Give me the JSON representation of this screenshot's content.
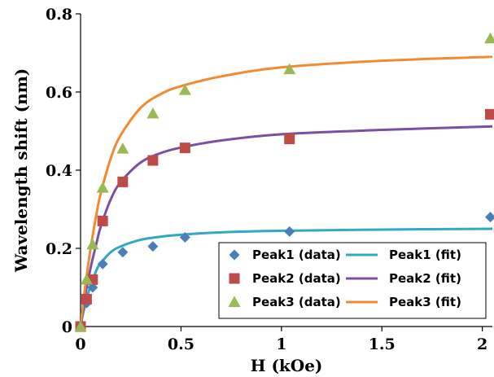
{
  "chart_data": {
    "type": "scatter",
    "xlabel": "H (kOe)",
    "ylabel": "Wavelength shift (nm)",
    "xlim": [
      0,
      2.05
    ],
    "ylim": [
      0,
      0.8
    ],
    "x_ticks": [
      0,
      0.5,
      1,
      1.5,
      2
    ],
    "x_tick_labels": [
      "0",
      "0.5",
      "1",
      "1.5",
      "2"
    ],
    "y_ticks": [
      0,
      0.2,
      0.4,
      0.6,
      0.8
    ],
    "y_tick_labels": [
      "0",
      "0.2",
      "0.4",
      "0.6",
      "0.8"
    ],
    "grid": false,
    "legend_position": "bottom-right",
    "series": [
      {
        "name": "Peak1 (data)",
        "kind": "markers",
        "marker": "diamond",
        "color": "#4a7ebb",
        "x": [
          0,
          0.03,
          0.06,
          0.11,
          0.21,
          0.36,
          0.52,
          1.04,
          2.04
        ],
        "y": [
          0,
          0.06,
          0.1,
          0.16,
          0.19,
          0.205,
          0.228,
          0.243,
          0.28
        ]
      },
      {
        "name": "Peak2 (data)",
        "kind": "markers",
        "marker": "square",
        "color": "#be4b48",
        "x": [
          0,
          0.03,
          0.06,
          0.11,
          0.21,
          0.36,
          0.52,
          1.04,
          2.04
        ],
        "y": [
          0,
          0.07,
          0.12,
          0.27,
          0.37,
          0.425,
          0.457,
          0.48,
          0.543
        ]
      },
      {
        "name": "Peak3 (data)",
        "kind": "markers",
        "marker": "triangle",
        "color": "#98b954",
        "x": [
          0,
          0.03,
          0.06,
          0.11,
          0.21,
          0.36,
          0.52,
          1.04,
          2.04
        ],
        "y": [
          0,
          0.12,
          0.21,
          0.355,
          0.455,
          0.545,
          0.605,
          0.658,
          0.737
        ]
      },
      {
        "name": "Peak1 (fit)",
        "kind": "line",
        "color": "#31a8c4",
        "x": [
          0,
          0.02,
          0.05,
          0.08,
          0.1,
          0.15,
          0.2,
          0.3,
          0.4,
          0.5,
          0.7,
          1.0,
          1.5,
          2.05
        ],
        "y": [
          0,
          0.05,
          0.105,
          0.145,
          0.162,
          0.19,
          0.205,
          0.222,
          0.23,
          0.235,
          0.241,
          0.245,
          0.248,
          0.25
        ]
      },
      {
        "name": "Peak2 (fit)",
        "kind": "line",
        "color": "#7a50a3",
        "x": [
          0,
          0.02,
          0.05,
          0.08,
          0.1,
          0.15,
          0.2,
          0.3,
          0.4,
          0.5,
          0.7,
          1.0,
          1.5,
          2.05
        ],
        "y": [
          0,
          0.07,
          0.15,
          0.215,
          0.255,
          0.325,
          0.37,
          0.42,
          0.444,
          0.458,
          0.476,
          0.492,
          0.503,
          0.512
        ]
      },
      {
        "name": "Peak3 (fit)",
        "kind": "line",
        "color": "#f08b34",
        "x": [
          0,
          0.02,
          0.05,
          0.08,
          0.1,
          0.15,
          0.2,
          0.3,
          0.4,
          0.5,
          0.7,
          1.0,
          1.5,
          2.05
        ],
        "y": [
          0,
          0.09,
          0.2,
          0.29,
          0.34,
          0.43,
          0.49,
          0.56,
          0.595,
          0.615,
          0.64,
          0.663,
          0.68,
          0.69
        ]
      }
    ],
    "legend": [
      [
        "Peak1 (data)",
        "Peak1 (fit)"
      ],
      [
        "Peak2 (data)",
        "Peak2 (fit)"
      ],
      [
        "Peak3 (data)",
        "Peak3 (fit)"
      ]
    ]
  }
}
